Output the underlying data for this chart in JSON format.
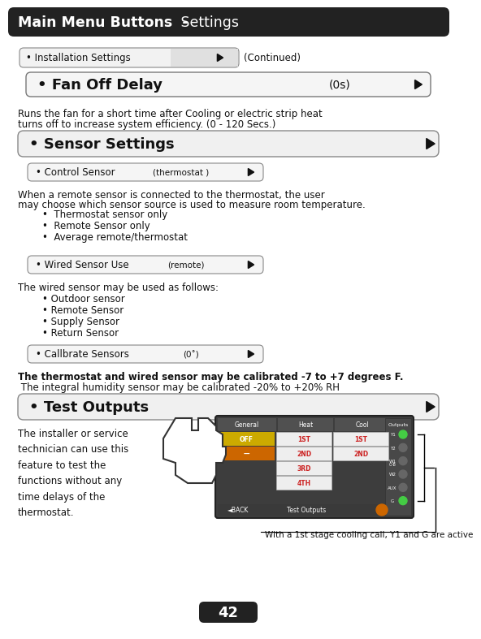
{
  "title_text_bold": "Main Menu Buttons  - ",
  "title_text_normal": " Settings",
  "title_bg": "#222222",
  "title_color": "#ffffff",
  "page_bg": "#ffffff",
  "bottom_text1": "The installer or service\ntechnician can use this\nfeature to test the\nfunctions without any\ntime delays of the\nthermostat.",
  "bottom_caption": "With a 1st stage cooling call, Y1 and G are active",
  "page_num": "42",
  "btn1_label": "• Installation Settings",
  "btn1_suffix": "(Continued)",
  "btn2_label": "• Fan Off Delay",
  "btn2_value": "(0s)",
  "fan_desc1": "Runs the fan for a short time after Cooling or electric strip heat",
  "fan_desc2": "turns off to increase system efficiency. (0 - 120 Secs.)",
  "btn3_label": "• Sensor Settings",
  "btn4_label": "• Control Sensor",
  "btn4_value": "(thermostat )",
  "ctrl_desc1": "When a remote sensor is connected to the thermostat, the user",
  "ctrl_desc2": "may choose which sensor source is used to measure room temperature.",
  "ctrl_bullets": [
    "•  Thermostat sensor only",
    "•  Remote Sensor only",
    "•  Average remote/thermostat"
  ],
  "btn5_label": "• Wired Sensor Use",
  "btn5_value": "(remote)",
  "wired_desc": "The wired sensor may be used as follows:",
  "wired_bullets": [
    "• Outdoor sensor",
    "• Remote Sensor",
    "• Supply Sensor",
    "• Return Sensor"
  ],
  "btn6_label": "• Callbrate Sensors",
  "btn6_value": "(0˚)",
  "cal_desc1": "The thermostat and wired sensor may be calibrated -7 to +7 degrees F.",
  "cal_desc2": " The integral humidity sensor may be calibrated -20% to +20% RH",
  "btn7_label": "• Test Outputs"
}
